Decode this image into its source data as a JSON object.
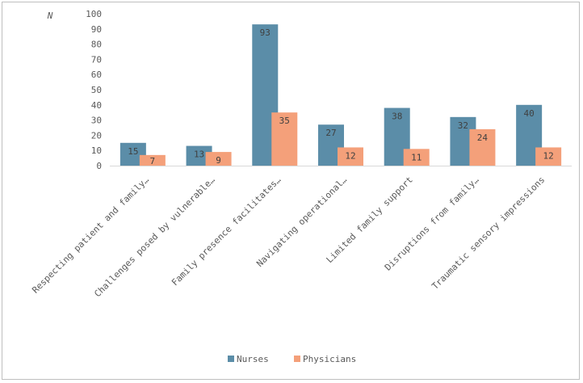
{
  "chart_data": {
    "type": "bar",
    "ylabel": "N",
    "ylim": [
      0,
      100
    ],
    "yticks": [
      0,
      10,
      20,
      30,
      40,
      50,
      60,
      70,
      80,
      90,
      100
    ],
    "categories": [
      "Respecting patient and family…",
      "Challenges posed by vulnerable…",
      "Family presence facilitates…",
      "Navigating operational…",
      "Limited family support",
      "Disruptions from family…",
      "Traumatic sensory impressions"
    ],
    "series": [
      {
        "name": "Nurses",
        "color": "#5b8da8",
        "values": [
          15,
          13,
          93,
          27,
          38,
          32,
          40
        ]
      },
      {
        "name": "Physicians",
        "color": "#f4a07a",
        "values": [
          7,
          9,
          35,
          12,
          11,
          24,
          12
        ]
      }
    ],
    "legend_position": "bottom",
    "grid": false
  }
}
